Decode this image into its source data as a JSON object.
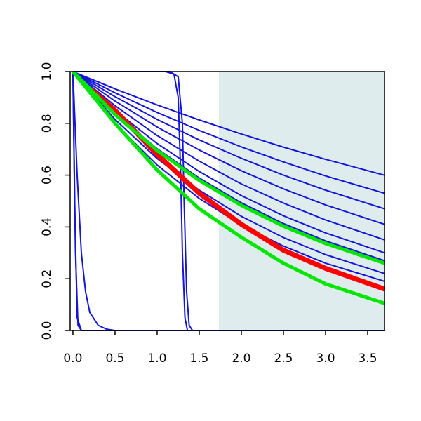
{
  "chart_data": {
    "type": "line",
    "xlim": [
      -0.033,
      3.7
    ],
    "ylim": [
      0,
      1
    ],
    "xticks": [
      {
        "value": 0,
        "label": "0.0"
      },
      {
        "value": 0.5,
        "label": "0.5"
      },
      {
        "value": 1,
        "label": "1.0"
      },
      {
        "value": 1.5,
        "label": "1.5"
      },
      {
        "value": 2,
        "label": "2.0"
      },
      {
        "value": 2.5,
        "label": "2.5"
      },
      {
        "value": 3,
        "label": "3.0"
      },
      {
        "value": 3.5,
        "label": "3.5"
      }
    ],
    "yticks": [
      {
        "value": 0,
        "label": "0.0"
      },
      {
        "value": 0.2,
        "label": "0.2"
      },
      {
        "value": 0.4,
        "label": "0.4"
      },
      {
        "value": 0.6,
        "label": "0.6"
      },
      {
        "value": 0.8,
        "label": "0.8"
      },
      {
        "value": 1,
        "label": "1.0"
      }
    ],
    "shaded_region": {
      "xmin": 1.733,
      "color": "#dfeced"
    },
    "series": [
      {
        "color": "#1515d8",
        "line_width": 2,
        "x": [
          0,
          0.5,
          1,
          1.5,
          2,
          2.5,
          3,
          3.7
        ],
        "values": [
          1,
          0.933,
          0.871,
          0.813,
          0.759,
          0.708,
          0.661,
          0.6
        ]
      },
      {
        "color": "#1515d8",
        "line_width": 2,
        "x": [
          0,
          0.5,
          1,
          1.5,
          2,
          2.5,
          3,
          3.7
        ],
        "values": [
          1,
          0.918,
          0.842,
          0.773,
          0.709,
          0.651,
          0.597,
          0.53
        ]
      },
      {
        "color": "#1515d8",
        "line_width": 2,
        "x": [
          0,
          0.5,
          1,
          1.5,
          2,
          2.5,
          3,
          3.7
        ],
        "values": [
          1,
          0.903,
          0.815,
          0.736,
          0.665,
          0.6,
          0.542,
          0.47
        ]
      },
      {
        "color": "#1515d8",
        "line_width": 2,
        "x": [
          0,
          0.5,
          1,
          1.5,
          2,
          2.5,
          3,
          3.7
        ],
        "values": [
          1,
          0.886,
          0.786,
          0.697,
          0.617,
          0.547,
          0.485,
          0.41
        ]
      },
      {
        "color": "#1515d8",
        "line_width": 2,
        "x": [
          0,
          0.5,
          1,
          1.5,
          2,
          2.5,
          3,
          3.7
        ],
        "values": [
          1,
          0.868,
          0.753,
          0.654,
          0.566,
          0.492,
          0.427,
          0.35
        ]
      },
      {
        "color": "#1515d8",
        "line_width": 2,
        "x": [
          0,
          0.5,
          1,
          1.5,
          2,
          2.5,
          3,
          3.7
        ],
        "values": [
          1,
          0.85,
          0.722,
          0.614,
          0.521,
          0.443,
          0.377,
          0.3
        ]
      },
      {
        "color": "#1515d8",
        "line_width": 2,
        "x": [
          0,
          0.5,
          1,
          1.5,
          2,
          2.5,
          3,
          3.7
        ],
        "values": [
          1,
          0.838,
          0.702,
          0.589,
          0.493,
          0.413,
          0.346,
          0.27
        ]
      },
      {
        "color": "#1515d8",
        "line_width": 2,
        "x": [
          0,
          0.5,
          1,
          1.5,
          2,
          2.5,
          3,
          3.7
        ],
        "values": [
          1,
          0.815,
          0.664,
          0.542,
          0.441,
          0.359,
          0.293,
          0.22
        ]
      },
      {
        "color": "#1515d8",
        "line_width": 2,
        "x": [
          0,
          0.5,
          1,
          1.5,
          2,
          2.5,
          3,
          3.7
        ],
        "values": [
          1,
          0.799,
          0.639,
          0.51,
          0.407,
          0.326,
          0.26,
          0.19
        ]
      },
      {
        "color": "#1515d8",
        "line_width": 2,
        "x": [
          0,
          0.02,
          0.05,
          0.1,
          3.7
        ],
        "values": [
          1,
          0.5,
          0.05,
          0,
          0
        ]
      },
      {
        "color": "#1515d8",
        "line_width": 2,
        "x": [
          0,
          0.03,
          0.06,
          0.1
        ],
        "values": [
          1,
          0.3,
          0.02,
          0
        ]
      },
      {
        "color": "#1515d8",
        "line_width": 2,
        "x": [
          0,
          0.05,
          0.1,
          0.15,
          0.2,
          0.3,
          0.4,
          0.5
        ],
        "values": [
          1,
          0.6,
          0.3,
          0.15,
          0.07,
          0.02,
          0.005,
          0
        ]
      },
      {
        "color": "#1515d8",
        "line_width": 2,
        "x": [
          0,
          1.1,
          1.2,
          1.25,
          1.28,
          1.3,
          1.33,
          1.36,
          1.4,
          3.7
        ],
        "values": [
          1,
          1,
          0.99,
          0.9,
          0.6,
          0.3,
          0.05,
          0,
          0,
          0
        ]
      },
      {
        "color": "#1515d8",
        "line_width": 2,
        "x": [
          0,
          1.15,
          1.25,
          1.3,
          1.32,
          1.35,
          1.38,
          1.42
        ],
        "values": [
          1,
          1,
          0.98,
          0.8,
          0.5,
          0.15,
          0.02,
          0
        ]
      },
      {
        "color": "#ff0000",
        "line_width": 7,
        "x": [
          0.22,
          0.5,
          1,
          1.5,
          2,
          2.5,
          3,
          3.7
        ],
        "values": [
          0.93,
          0.85,
          0.68,
          0.53,
          0.41,
          0.31,
          0.24,
          0.16
        ]
      },
      {
        "color": "#00e600",
        "line_width": 5,
        "x": [
          0,
          0.5,
          1,
          1.5,
          2,
          2.5,
          3,
          3.7
        ],
        "values": [
          1,
          0.834,
          0.695,
          0.58,
          0.483,
          0.403,
          0.336,
          0.26
        ]
      },
      {
        "color": "#00e600",
        "line_width": 5,
        "x": [
          0,
          0.5,
          1,
          1.5,
          2,
          2.5,
          3,
          3.7
        ],
        "values": [
          1,
          0.8,
          0.62,
          0.47,
          0.36,
          0.26,
          0.18,
          0.105
        ]
      }
    ]
  }
}
